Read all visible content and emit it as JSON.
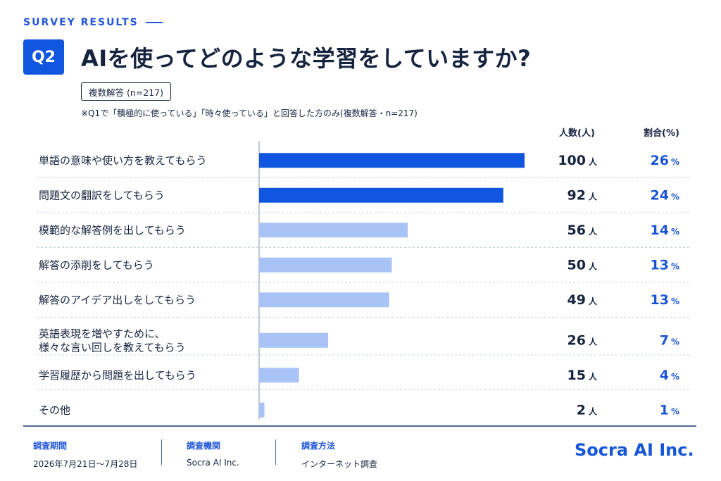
{
  "header": {
    "kicker": "SURVEY RESULTS",
    "question_badge": "Q2",
    "title": "AIを使ってどのような学習をしていますか?",
    "multi_tag": "複数解答 (n=217)",
    "note": "※Q1で「積極的に使っている」「時々使っている」と回答した方のみ(複数解答・n=217)"
  },
  "columns": {
    "count_header": "人数(人)",
    "pct_header": "割合(%)",
    "count_unit": "人",
    "pct_unit": "%"
  },
  "colors": {
    "accent": "#0f55e0",
    "bar_strong": "#0f55e0",
    "bar_light": "#a8c3f5",
    "grid": "#bcd0f0",
    "axis": "#9aa4b4",
    "pct_text": "#1b55d6"
  },
  "chart_data": {
    "type": "bar",
    "orientation": "horizontal",
    "categories": [
      "単語の意味や使い方を教えてもらう",
      "問題文の翻訳をしてもらう",
      "模範的な解答例を出してもらう",
      "解答の添削をしてもらう",
      "解答のアイデア出しをしてもらう",
      "英語表現を増やすために、\n様々な言い回しを教えてもらう",
      "学習履歴から問題を出してもらう",
      "その他"
    ],
    "values": [
      100,
      92,
      56,
      50,
      49,
      26,
      15,
      2
    ],
    "percents": [
      26,
      24,
      14,
      13,
      13,
      7,
      4,
      1
    ],
    "highlight_top": 2,
    "xlim": [
      0,
      100
    ],
    "grid": false
  },
  "footer": {
    "period_label": "調査期間",
    "period_value": "2026年7月21日〜7月28日",
    "org_label": "調査機関",
    "org_value": "Socra AI Inc.",
    "method_label": "調査方法",
    "method_value": "インターネット調査",
    "brand": "Socra AI Inc."
  }
}
